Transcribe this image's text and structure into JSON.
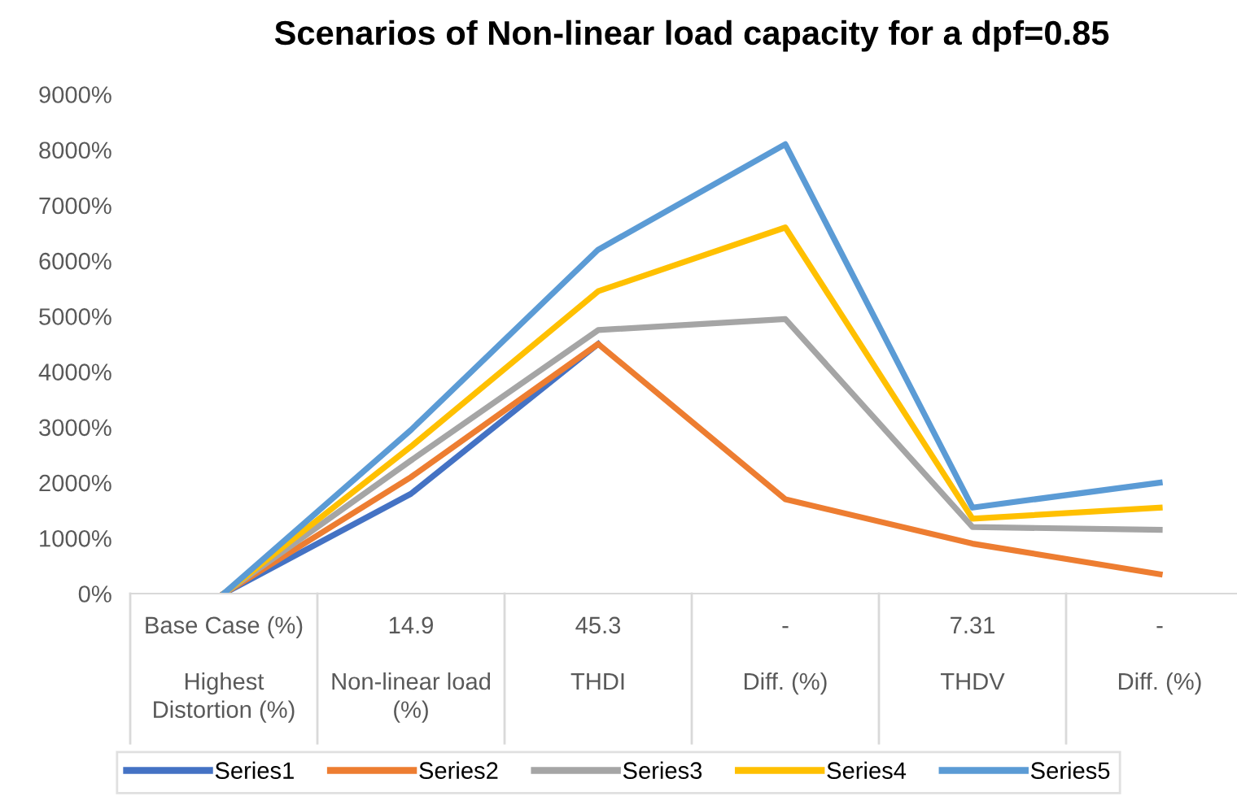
{
  "chart_data": {
    "type": "line",
    "title": "Scenarios of Non-linear load capacity for a dpf=0.85",
    "categories": [
      "Base Case (%)\n\nHighest\nDistortion (%)",
      "14.9\n\nNon-linear load\n(%)",
      "45.3\n\nTHDI\n",
      "-\n\nDiff. (%)\n",
      "7.31\n\nTHDV\n",
      "-\n\nDiff. (%)\n"
    ],
    "series": [
      {
        "name": "Series1",
        "color": "#4472c4",
        "values": [
          0,
          1800,
          4500,
          null,
          null,
          null
        ]
      },
      {
        "name": "Series2",
        "color": "#ed7d31",
        "values": [
          0,
          2100,
          4500,
          1700,
          900,
          350
        ]
      },
      {
        "name": "Series3",
        "color": "#a5a5a5",
        "values": [
          0,
          2400,
          4750,
          4950,
          1200,
          1150
        ]
      },
      {
        "name": "Series4",
        "color": "#ffc000",
        "values": [
          0,
          2650,
          5450,
          6600,
          1350,
          1550
        ]
      },
      {
        "name": "Series5",
        "color": "#5b9bd5",
        "values": [
          0,
          2950,
          6200,
          8100,
          1550,
          2000
        ]
      }
    ],
    "ylim": [
      0,
      9000
    ],
    "yticks": [
      {
        "value": 0,
        "label": "0%"
      },
      {
        "value": 1000,
        "label": "1000%"
      },
      {
        "value": 2000,
        "label": "2000%"
      },
      {
        "value": 3000,
        "label": "3000%"
      },
      {
        "value": 4000,
        "label": "4000%"
      },
      {
        "value": 5000,
        "label": "5000%"
      },
      {
        "value": 6000,
        "label": "6000%"
      },
      {
        "value": 7000,
        "label": "7000%"
      },
      {
        "value": 8000,
        "label": "8000%"
      },
      {
        "value": 9000,
        "label": "9000%"
      }
    ],
    "grid": false,
    "legend": "bottom",
    "marker": "none",
    "line_style": "solid"
  }
}
